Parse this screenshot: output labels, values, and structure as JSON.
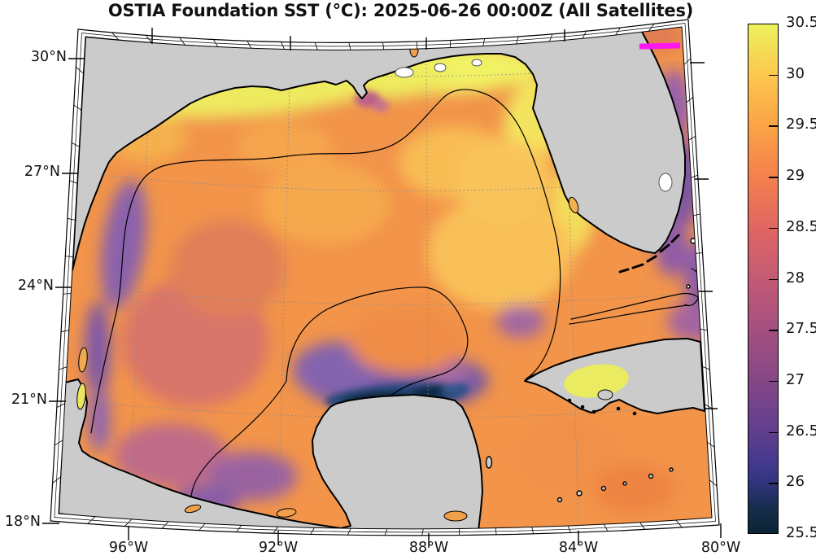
{
  "title": "OSTIA Foundation SST (°C): 2025-06-26 00:00Z (All Satellites)",
  "map": {
    "lat_tick_labels": [
      "30°N",
      "27°N",
      "24°N",
      "21°N",
      "18°N"
    ],
    "lon_tick_labels": [
      "96°W",
      "92°W",
      "88°W",
      "84°W",
      "80°W"
    ]
  },
  "colorbar": {
    "min": 25.5,
    "max": 30.5,
    "tick_labels": [
      "30.5",
      "30",
      "29.5",
      "29",
      "28.5",
      "28",
      "27.5",
      "27",
      "26.5",
      "26",
      "25.5"
    ],
    "colormap": "thermal",
    "stops": [
      {
        "at": 0.0,
        "color": "#edf25d"
      },
      {
        "at": 0.1,
        "color": "#fcc74e"
      },
      {
        "at": 0.2,
        "color": "#fba346"
      },
      {
        "at": 0.3,
        "color": "#f5804d"
      },
      {
        "at": 0.4,
        "color": "#e06561"
      },
      {
        "at": 0.5,
        "color": "#c35a75"
      },
      {
        "at": 0.6,
        "color": "#a55080"
      },
      {
        "at": 0.7,
        "color": "#854786"
      },
      {
        "at": 0.8,
        "color": "#613e8e"
      },
      {
        "at": 0.86,
        "color": "#45398f"
      },
      {
        "at": 0.9,
        "color": "#31357e"
      },
      {
        "at": 0.95,
        "color": "#182d4d"
      },
      {
        "at": 1.0,
        "color": "#0a2433"
      }
    ]
  },
  "colors": {
    "land": "#cbcbcb",
    "ocean_base": "#f2944a",
    "coastline": "#000000",
    "contour": "#000000",
    "graticule": "#8a8a8a",
    "frame_band": "#ffffff",
    "magenta_marker": "#ff18ee",
    "lake": "#ffffff"
  },
  "chart_data": {
    "type": "heatmap",
    "title": "OSTIA Foundation SST (°C): 2025-06-26 00:00Z (All Satellites)",
    "variable": "Sea surface temperature (°C)",
    "x_ticks": [
      "96°W",
      "92°W",
      "88°W",
      "84°W",
      "80°W"
    ],
    "y_ticks": [
      "18°N",
      "21°N",
      "24°N",
      "27°N",
      "30°N"
    ],
    "lon_range_west_deg": [
      98,
      80
    ],
    "lat_range_north_deg": [
      18,
      31
    ],
    "grid": "dotted graticule, 3° latitude by 4° longitude",
    "colorbar": {
      "min": 25.5,
      "max": 30.5,
      "tick_step": 0.5,
      "ticks": [
        25.5,
        26,
        26.5,
        27,
        27.5,
        28,
        28.5,
        29,
        29.5,
        30,
        30.5
      ],
      "colormap": "thermal (dark navy → violet → magenta-rose → orange → yellow)"
    },
    "features": [
      {
        "region": "Texas-Louisiana inner shelf",
        "approx_sst_c": "30.0-30.5"
      },
      {
        "region": "Central Gulf of Mexico",
        "approx_sst_c": "29.0-29.5"
      },
      {
        "region": "Nearshore band along Texas/Tamaulipas coast",
        "approx_sst_c": "27.0-28.0"
      },
      {
        "region": "Campeche Bank upwelling north of Yucatán (coldest)",
        "approx_sst_c": "25.5-26.5"
      },
      {
        "region": "Bay of Campeche",
        "approx_sst_c": "28.0-29.0"
      },
      {
        "region": "West Florida shelf / Big Bend",
        "approx_sst_c": "30.0-30.5"
      },
      {
        "region": "Gulf of Batabanó, south of Cuba",
        "approx_sst_c": "30.5"
      },
      {
        "region": "Atlantic shelf east of Florida",
        "approx_sst_c": "27.0-29.5 mottled"
      },
      {
        "region": "Straits of Florida",
        "approx_sst_c": "29.0-29.5"
      }
    ],
    "overlays": [
      {
        "name": "black contour lines",
        "desc": "shelf-edge / frontal contours over the SST field"
      },
      {
        "name": "magenta segment",
        "desc": "short magenta bar near 30°N, ~80.7°W at top right"
      },
      {
        "name": "gray land mask",
        "desc": "land shown in light gray with black coastlines"
      }
    ]
  }
}
